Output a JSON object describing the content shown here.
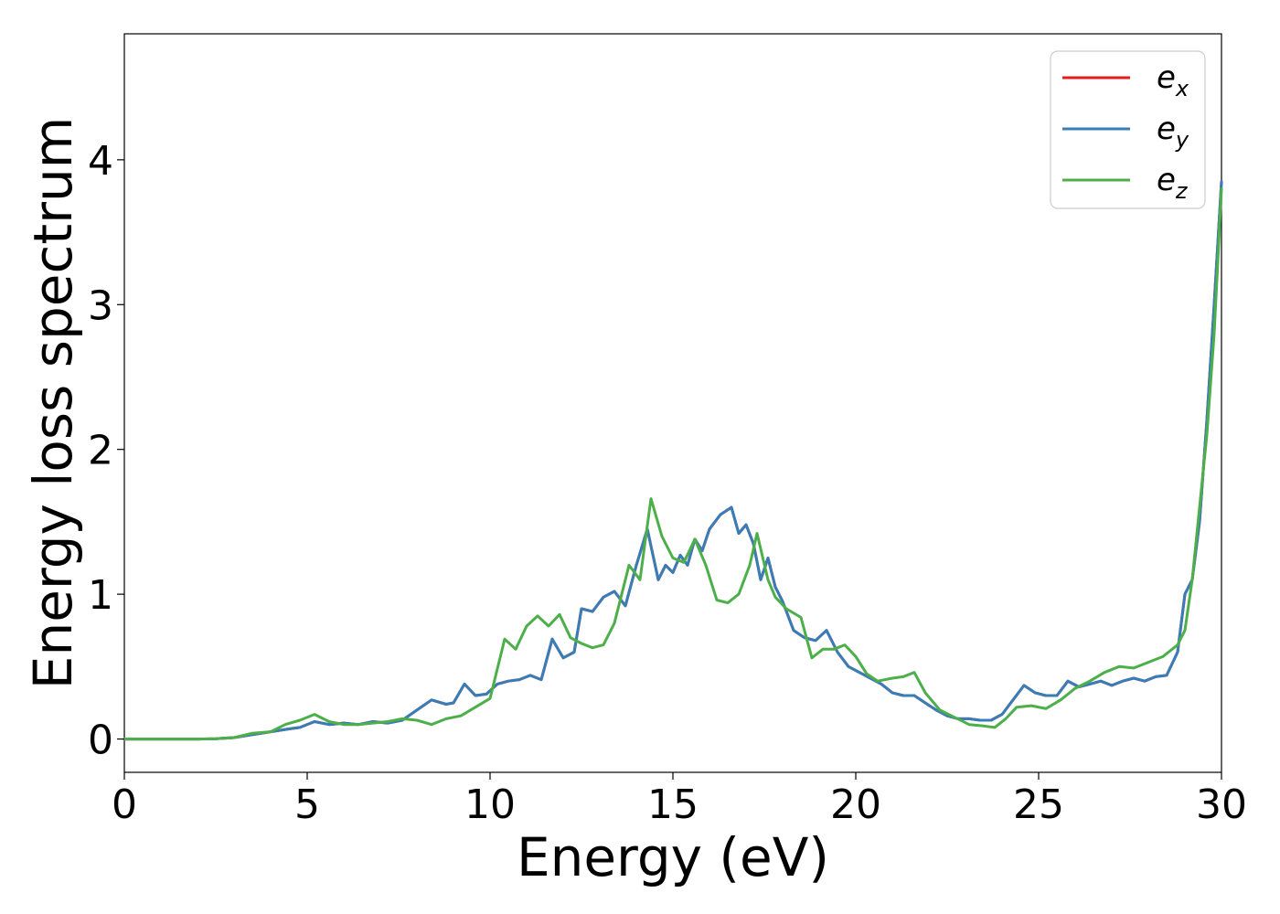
{
  "chart_data": {
    "type": "line",
    "title": "",
    "xlabel": "Energy (eV)",
    "ylabel": "Energy loss spectrum",
    "xlim": [
      0,
      30
    ],
    "ylim": [
      -0.23,
      4.87
    ],
    "xticks": [
      0,
      5,
      10,
      15,
      20,
      25,
      30
    ],
    "yticks": [
      0,
      1,
      2,
      3,
      4
    ],
    "grid": false,
    "legend_position": "top-right",
    "series": [
      {
        "name": "e",
        "subscript": "x",
        "color": "#e41a1c",
        "x": [
          0,
          1,
          2,
          2.5,
          3,
          3.5,
          4,
          4.5,
          4.8,
          5.2,
          5.6,
          6.0,
          6.4,
          6.8,
          7.2,
          7.6,
          8.0,
          8.4,
          8.8,
          9.0,
          9.3,
          9.6,
          9.9,
          10.2,
          10.5,
          10.8,
          11.1,
          11.4,
          11.7,
          12.0,
          12.3,
          12.5,
          12.8,
          13.1,
          13.4,
          13.7,
          14.0,
          14.3,
          14.6,
          14.8,
          15.0,
          15.2,
          15.4,
          15.6,
          15.8,
          16.0,
          16.3,
          16.6,
          16.8,
          17.0,
          17.2,
          17.4,
          17.6,
          17.8,
          18.0,
          18.3,
          18.6,
          18.9,
          19.2,
          19.5,
          19.8,
          20.1,
          20.4,
          20.7,
          21.0,
          21.3,
          21.6,
          21.9,
          22.2,
          22.5,
          22.8,
          23.1,
          23.4,
          23.7,
          24.0,
          24.3,
          24.6,
          24.9,
          25.2,
          25.5,
          25.8,
          26.1,
          26.4,
          26.7,
          27.0,
          27.3,
          27.6,
          27.9,
          28.2,
          28.5,
          28.8,
          29.0,
          29.2,
          29.4,
          29.6,
          29.8,
          30.0
        ],
        "y": [
          0,
          0,
          0,
          0.002,
          0.01,
          0.03,
          0.05,
          0.07,
          0.08,
          0.12,
          0.1,
          0.11,
          0.1,
          0.12,
          0.11,
          0.13,
          0.2,
          0.27,
          0.24,
          0.25,
          0.38,
          0.3,
          0.31,
          0.38,
          0.4,
          0.41,
          0.44,
          0.41,
          0.69,
          0.56,
          0.6,
          0.9,
          0.88,
          0.98,
          1.02,
          0.92,
          1.2,
          1.45,
          1.1,
          1.2,
          1.15,
          1.27,
          1.2,
          1.38,
          1.3,
          1.45,
          1.55,
          1.6,
          1.42,
          1.48,
          1.35,
          1.1,
          1.25,
          1.05,
          0.95,
          0.75,
          0.7,
          0.68,
          0.75,
          0.6,
          0.5,
          0.46,
          0.42,
          0.38,
          0.32,
          0.3,
          0.3,
          0.25,
          0.2,
          0.16,
          0.14,
          0.14,
          0.13,
          0.13,
          0.17,
          0.27,
          0.37,
          0.32,
          0.3,
          0.3,
          0.4,
          0.36,
          0.38,
          0.4,
          0.37,
          0.4,
          0.42,
          0.4,
          0.43,
          0.44,
          0.6,
          1.0,
          1.1,
          1.5,
          2.2,
          3.0,
          3.85
        ]
      },
      {
        "name": "e",
        "subscript": "y",
        "color": "#377eb8",
        "x": [
          0,
          1,
          2,
          2.5,
          3,
          3.5,
          4,
          4.5,
          4.8,
          5.2,
          5.6,
          6.0,
          6.4,
          6.8,
          7.2,
          7.6,
          8.0,
          8.4,
          8.8,
          9.0,
          9.3,
          9.6,
          9.9,
          10.2,
          10.5,
          10.8,
          11.1,
          11.4,
          11.7,
          12.0,
          12.3,
          12.5,
          12.8,
          13.1,
          13.4,
          13.7,
          14.0,
          14.3,
          14.6,
          14.8,
          15.0,
          15.2,
          15.4,
          15.6,
          15.8,
          16.0,
          16.3,
          16.6,
          16.8,
          17.0,
          17.2,
          17.4,
          17.6,
          17.8,
          18.0,
          18.3,
          18.6,
          18.9,
          19.2,
          19.5,
          19.8,
          20.1,
          20.4,
          20.7,
          21.0,
          21.3,
          21.6,
          21.9,
          22.2,
          22.5,
          22.8,
          23.1,
          23.4,
          23.7,
          24.0,
          24.3,
          24.6,
          24.9,
          25.2,
          25.5,
          25.8,
          26.1,
          26.4,
          26.7,
          27.0,
          27.3,
          27.6,
          27.9,
          28.2,
          28.5,
          28.8,
          29.0,
          29.2,
          29.4,
          29.6,
          29.8,
          30.0
        ],
        "y": [
          0,
          0,
          0,
          0.002,
          0.01,
          0.03,
          0.05,
          0.07,
          0.08,
          0.12,
          0.1,
          0.11,
          0.1,
          0.12,
          0.11,
          0.13,
          0.2,
          0.27,
          0.24,
          0.25,
          0.38,
          0.3,
          0.31,
          0.38,
          0.4,
          0.41,
          0.44,
          0.41,
          0.69,
          0.56,
          0.6,
          0.9,
          0.88,
          0.98,
          1.02,
          0.92,
          1.2,
          1.45,
          1.1,
          1.2,
          1.15,
          1.27,
          1.2,
          1.38,
          1.3,
          1.45,
          1.55,
          1.6,
          1.42,
          1.48,
          1.35,
          1.1,
          1.25,
          1.05,
          0.95,
          0.75,
          0.7,
          0.68,
          0.75,
          0.6,
          0.5,
          0.46,
          0.42,
          0.38,
          0.32,
          0.3,
          0.3,
          0.25,
          0.2,
          0.16,
          0.14,
          0.14,
          0.13,
          0.13,
          0.17,
          0.27,
          0.37,
          0.32,
          0.3,
          0.3,
          0.4,
          0.36,
          0.38,
          0.4,
          0.37,
          0.4,
          0.42,
          0.4,
          0.43,
          0.44,
          0.6,
          1.0,
          1.1,
          1.5,
          2.2,
          3.0,
          3.85
        ]
      },
      {
        "name": "e",
        "subscript": "z",
        "color": "#4daf4a",
        "x": [
          0,
          1,
          2,
          2.5,
          3,
          3.5,
          4,
          4.4,
          4.8,
          5.2,
          5.6,
          6.0,
          6.4,
          6.8,
          7.2,
          7.6,
          8.0,
          8.4,
          8.8,
          9.2,
          9.6,
          10.0,
          10.4,
          10.7,
          11.0,
          11.3,
          11.6,
          11.9,
          12.2,
          12.5,
          12.8,
          13.1,
          13.4,
          13.8,
          14.1,
          14.4,
          14.7,
          15.0,
          15.3,
          15.6,
          15.9,
          16.2,
          16.5,
          16.8,
          17.1,
          17.3,
          17.6,
          17.8,
          18.1,
          18.5,
          18.8,
          19.1,
          19.4,
          19.7,
          20.0,
          20.3,
          20.6,
          21.0,
          21.3,
          21.6,
          21.9,
          22.3,
          22.7,
          23.1,
          23.5,
          23.8,
          24.1,
          24.4,
          24.8,
          25.2,
          25.6,
          26.0,
          26.4,
          26.8,
          27.2,
          27.6,
          28.0,
          28.4,
          28.8,
          29.0,
          29.2,
          29.4,
          29.6,
          29.8,
          30.0
        ],
        "y": [
          0,
          0,
          0,
          0.002,
          0.01,
          0.04,
          0.05,
          0.1,
          0.13,
          0.17,
          0.12,
          0.1,
          0.1,
          0.11,
          0.12,
          0.14,
          0.13,
          0.1,
          0.14,
          0.16,
          0.22,
          0.28,
          0.69,
          0.62,
          0.78,
          0.85,
          0.78,
          0.86,
          0.7,
          0.66,
          0.63,
          0.65,
          0.8,
          1.2,
          1.1,
          1.66,
          1.4,
          1.25,
          1.22,
          1.38,
          1.2,
          0.96,
          0.94,
          1.0,
          1.2,
          1.42,
          1.1,
          0.98,
          0.9,
          0.84,
          0.56,
          0.62,
          0.62,
          0.65,
          0.57,
          0.45,
          0.4,
          0.42,
          0.43,
          0.46,
          0.32,
          0.2,
          0.15,
          0.1,
          0.09,
          0.08,
          0.14,
          0.22,
          0.23,
          0.21,
          0.27,
          0.35,
          0.4,
          0.46,
          0.5,
          0.49,
          0.53,
          0.57,
          0.65,
          0.75,
          1.1,
          1.6,
          2.1,
          2.8,
          3.8
        ]
      }
    ]
  }
}
